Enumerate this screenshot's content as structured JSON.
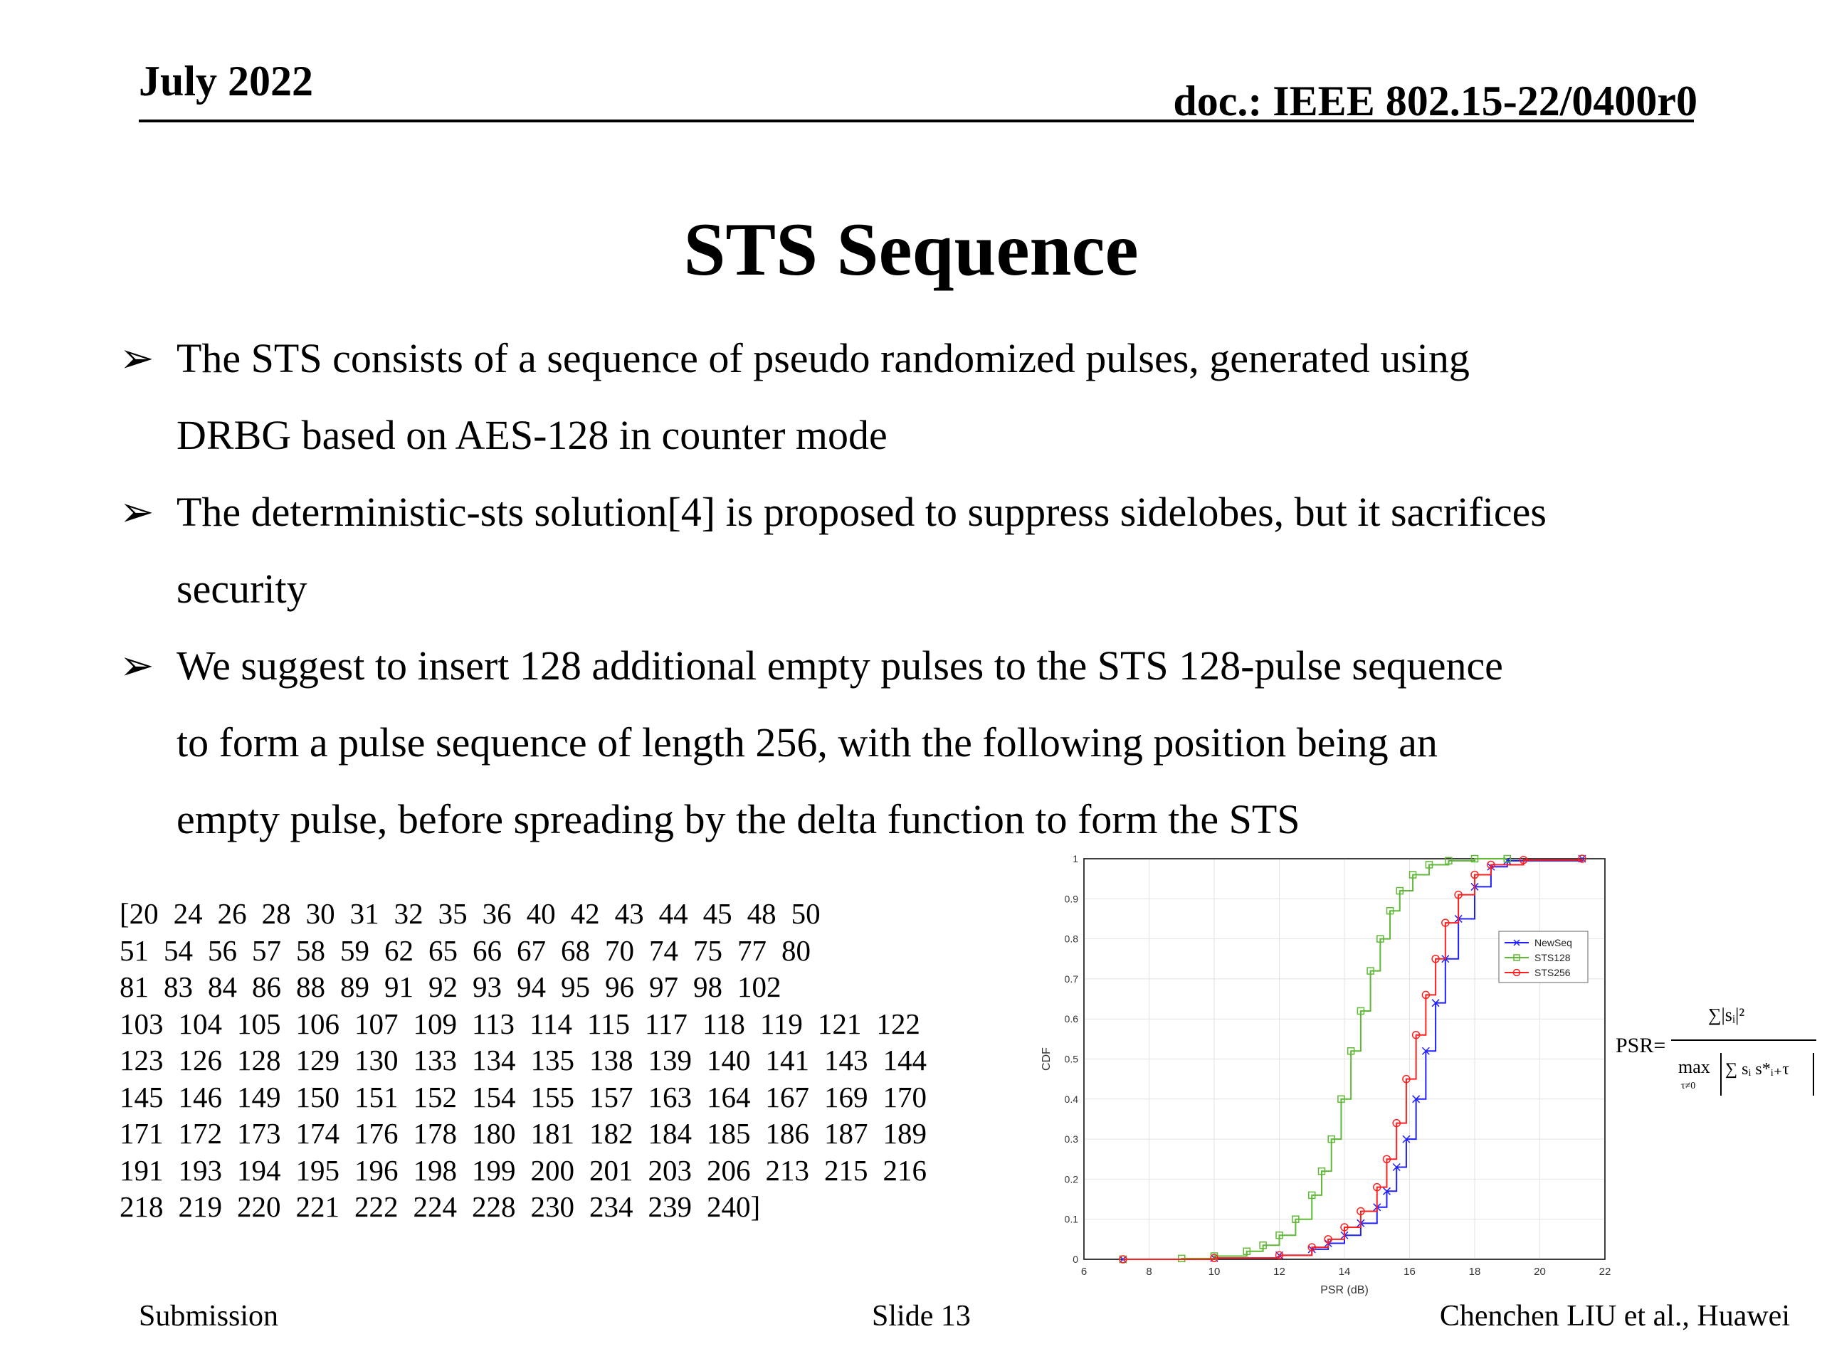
{
  "header": {
    "date": "July 2022",
    "doc": "doc.: IEEE 802.15-22/0400r0"
  },
  "title": "STS Sequence",
  "bullets": [
    {
      "marker": "➢",
      "lines": [
        "The STS consists of a sequence of pseudo randomized pulses, generated using",
        "DRBG based on AES-128 in counter mode"
      ]
    },
    {
      "marker": "➢",
      "lines": [
        "The deterministic-sts solution[4] is proposed to suppress sidelobes, but it sacrifices",
        "security"
      ]
    },
    {
      "marker": "➢",
      "lines": [
        "We suggest to insert 128 additional empty pulses to the STS 128-pulse sequence",
        "to form a pulse sequence of length 256, with the following position being an",
        "empty pulse, before spreading by the delta function to form the STS"
      ]
    }
  ],
  "sequence_lines": [
    [
      "[20",
      "24",
      "26",
      "28",
      "30",
      "31",
      "32",
      "35",
      "36",
      "40",
      "42",
      "43",
      "44",
      "45",
      "48",
      "50"
    ],
    [
      "51",
      "54",
      "56",
      "57",
      "58",
      "59",
      "62",
      "65",
      "66",
      "67",
      "68",
      "70",
      "74",
      "75",
      "77",
      "80"
    ],
    [
      "81",
      "83",
      "84",
      "86",
      "88",
      "89",
      "91",
      "92",
      "93",
      "94",
      "95",
      "96",
      "97",
      "98",
      "102"
    ],
    [
      "103",
      "104",
      "105",
      "106",
      "107",
      "109",
      "113",
      "114",
      "115",
      "117",
      "118",
      "119",
      "121",
      "122"
    ],
    [
      "123",
      "126",
      "128",
      "129",
      "130",
      "133",
      "134",
      "135",
      "138",
      "139",
      "140",
      "141",
      "143",
      "144"
    ],
    [
      "145",
      "146",
      "149",
      "150",
      "151",
      "152",
      "154",
      "155",
      "157",
      "163",
      "164",
      "167",
      "169",
      "170"
    ],
    [
      "171",
      "172",
      "173",
      "174",
      "176",
      "178",
      "180",
      "181",
      "182",
      "184",
      "185",
      "186",
      "187",
      "189"
    ],
    [
      "191",
      "193",
      "194",
      "195",
      "196",
      "198",
      "199",
      "200",
      "201",
      "203",
      "206",
      "213",
      "215",
      "216"
    ],
    [
      "218",
      "219",
      "220",
      "221",
      "222",
      "224",
      "228",
      "230",
      "234",
      "239",
      "240]"
    ]
  ],
  "formula": {
    "lhs": "PSR=",
    "num": "∑|sᵢ|²",
    "den_max": "max",
    "den_sub": "τ≠0",
    "den_sum": "∑ sᵢ s*ᵢ₊τ"
  },
  "chart_data": {
    "type": "line",
    "xlabel": "PSR (dB)",
    "ylabel": "CDF",
    "xlim": [
      6,
      22
    ],
    "ylim": [
      0,
      1
    ],
    "xticks": [
      "6",
      "8",
      "10",
      "12",
      "14",
      "16",
      "18",
      "20",
      "22"
    ],
    "yticks": [
      "0",
      "0.1",
      "0.2",
      "0.3",
      "0.4",
      "0.5",
      "0.6",
      "0.7",
      "0.8",
      "0.9",
      "1"
    ],
    "grid": true,
    "legend_position": "right",
    "series": [
      {
        "name": "NewSeq",
        "color": "#1f1fff",
        "marker": "x",
        "x": [
          7.2,
          10,
          12,
          13,
          13.5,
          14,
          14.5,
          15,
          15.3,
          15.6,
          15.9,
          16.2,
          16.5,
          16.8,
          17.1,
          17.5,
          18,
          18.5,
          19,
          21.3
        ],
        "y": [
          0,
          0.003,
          0.01,
          0.025,
          0.04,
          0.06,
          0.09,
          0.13,
          0.17,
          0.23,
          0.3,
          0.4,
          0.52,
          0.64,
          0.75,
          0.85,
          0.93,
          0.98,
          0.995,
          1
        ]
      },
      {
        "name": "STS128",
        "color": "#5fb836",
        "marker": "square",
        "x": [
          7.2,
          9,
          10,
          11,
          11.5,
          12,
          12.5,
          13,
          13.3,
          13.6,
          13.9,
          14.2,
          14.5,
          14.8,
          15.1,
          15.4,
          15.7,
          16.1,
          16.6,
          17.2,
          18,
          19
        ],
        "y": [
          0,
          0.002,
          0.008,
          0.02,
          0.035,
          0.06,
          0.1,
          0.16,
          0.22,
          0.3,
          0.4,
          0.52,
          0.62,
          0.72,
          0.8,
          0.87,
          0.92,
          0.96,
          0.985,
          0.995,
          1,
          1
        ]
      },
      {
        "name": "STS256",
        "color": "#ff1f1f",
        "marker": "circle",
        "x": [
          7.2,
          10,
          12,
          13,
          13.5,
          14,
          14.5,
          15,
          15.3,
          15.6,
          15.9,
          16.2,
          16.5,
          16.8,
          17.1,
          17.5,
          18,
          18.5,
          19.5,
          21.3
        ],
        "y": [
          0,
          0.003,
          0.01,
          0.03,
          0.05,
          0.08,
          0.12,
          0.18,
          0.25,
          0.34,
          0.45,
          0.56,
          0.66,
          0.75,
          0.84,
          0.91,
          0.96,
          0.985,
          0.997,
          1
        ]
      }
    ]
  },
  "footer": {
    "submission": "Submission",
    "slide": "Slide 13",
    "author": "Chenchen LIU et al., Huawei"
  }
}
